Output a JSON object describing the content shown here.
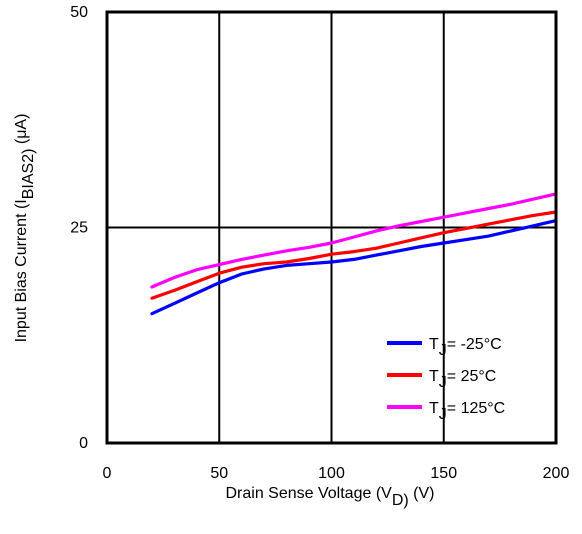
{
  "chart_data": {
    "type": "line",
    "xlabel": {
      "prefix": "Drain Sense Voltage (V",
      "sub": "D)",
      "suffix": " (V)"
    },
    "ylabel": {
      "prefix": "Input Bias Current (I",
      "sub": "BIAS2)",
      "suffix": " (μA)"
    },
    "xlim": [
      0,
      200
    ],
    "ylim": [
      0,
      50
    ],
    "xticks": [
      0,
      50,
      100,
      150,
      200
    ],
    "yticks": [
      0,
      25,
      50
    ],
    "x_tick_labels": [
      "0",
      "50",
      "100",
      "150",
      "200"
    ],
    "y_tick_labels": [
      "0",
      "25",
      "50"
    ],
    "grid": true,
    "legend_position": "bottom-right",
    "series": [
      {
        "name": "T_J = -25°C",
        "legend_main": "T",
        "legend_sub": "J",
        "legend_rest": "= -25°C",
        "color": "#0000ff",
        "x": [
          20,
          30,
          40,
          50,
          60,
          70,
          80,
          90,
          100,
          110,
          120,
          130,
          140,
          150,
          160,
          170,
          180,
          190,
          200
        ],
        "y": [
          15.0,
          16.2,
          17.4,
          18.6,
          19.6,
          20.2,
          20.6,
          20.8,
          21.0,
          21.3,
          21.8,
          22.3,
          22.8,
          23.2,
          23.6,
          24.0,
          24.6,
          25.2,
          25.8
        ]
      },
      {
        "name": "T_J = 25°C",
        "legend_main": "T",
        "legend_sub": "J",
        "legend_rest": "= 25°C",
        "color": "#ff0000",
        "x": [
          20,
          30,
          40,
          50,
          60,
          70,
          80,
          90,
          100,
          110,
          120,
          130,
          140,
          150,
          160,
          170,
          180,
          190,
          200
        ],
        "y": [
          16.8,
          17.7,
          18.7,
          19.7,
          20.4,
          20.8,
          21.0,
          21.4,
          21.9,
          22.2,
          22.6,
          23.2,
          23.8,
          24.4,
          24.9,
          25.4,
          25.9,
          26.4,
          26.8
        ]
      },
      {
        "name": "T_J = 125°C",
        "legend_main": "T",
        "legend_sub": "J",
        "legend_rest": "= 125°C",
        "color": "#ff00ff",
        "x": [
          20,
          30,
          40,
          50,
          60,
          70,
          80,
          90,
          100,
          110,
          120,
          130,
          140,
          150,
          160,
          170,
          180,
          190,
          200
        ],
        "y": [
          18.1,
          19.2,
          20.1,
          20.7,
          21.3,
          21.8,
          22.3,
          22.7,
          23.2,
          23.9,
          24.6,
          25.2,
          25.7,
          26.2,
          26.7,
          27.2,
          27.7,
          28.3,
          28.9
        ]
      }
    ]
  }
}
